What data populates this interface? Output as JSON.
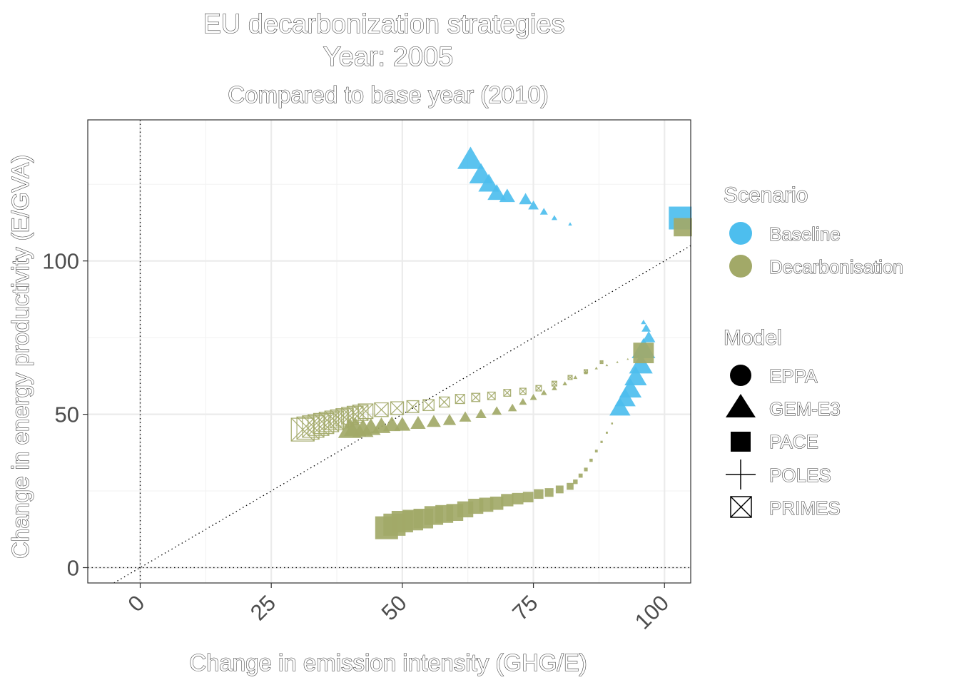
{
  "chart_data": {
    "type": "scatter",
    "title": "EU decarbonization strategies",
    "title_line2": "Year: 2005",
    "subtitle": "Compared to base year (2010)",
    "xlabel": "Change in emission intensity (GHG/E)",
    "ylabel": "Change in energy productivity (E/GVA)",
    "xlim": [
      -10,
      105
    ],
    "ylim": [
      -5,
      146
    ],
    "x_ticks": [
      0,
      25,
      50,
      75,
      100
    ],
    "x_tick_labels": [
      "0",
      "25",
      "50",
      "75",
      "100"
    ],
    "y_ticks": [
      0,
      50,
      100
    ],
    "y_tick_labels": [
      "0",
      "50",
      "100"
    ],
    "grid": true,
    "reference_lines": {
      "vertical_x": 0,
      "horizontal_y": 0,
      "diagonal_slope": 1
    },
    "legend_position": "right",
    "legends": [
      {
        "title": "Scenario",
        "entries": [
          {
            "label": "Baseline",
            "color": "#4dbeee"
          },
          {
            "label": "Decarbonisation",
            "color": "#a2a968"
          }
        ]
      },
      {
        "title": "Model",
        "entries": [
          {
            "label": "EPPA",
            "shape": "circle"
          },
          {
            "label": "GEM-E3",
            "shape": "triangle"
          },
          {
            "label": "PACE",
            "shape": "square"
          },
          {
            "label": "POLES",
            "shape": "plus"
          },
          {
            "label": "PRIMES",
            "shape": "square-cross"
          }
        ]
      }
    ],
    "series": [
      {
        "scenario": "Baseline",
        "model": "GEM-E3",
        "x": [
          63,
          65,
          66.5,
          68,
          70,
          73.5,
          75,
          77,
          79,
          82
        ],
        "y": [
          133,
          128,
          125,
          122,
          121,
          120,
          118,
          116,
          114,
          112
        ],
        "size": [
          1.0,
          0.9,
          0.8,
          0.7,
          0.6,
          0.5,
          0.4,
          0.3,
          0.22,
          0.15
        ]
      },
      {
        "scenario": "Baseline",
        "model": "GEM-E3",
        "x": [
          96,
          95.5,
          94.5,
          93.5,
          92.5,
          91.5
        ],
        "y": [
          71,
          66,
          62,
          58,
          55,
          52
        ],
        "size": [
          0.9,
          0.9,
          0.85,
          0.85,
          0.8,
          0.8
        ]
      },
      {
        "scenario": "Baseline",
        "model": "GEM-E3",
        "x": [
          96,
          96.5,
          97
        ],
        "y": [
          80,
          78,
          75
        ],
        "size": [
          0.2,
          0.35,
          0.5
        ]
      },
      {
        "scenario": "Baseline",
        "model": "PACE",
        "x": [
          103
        ],
        "y": [
          114
        ],
        "size": [
          1.0
        ]
      },
      {
        "scenario": "Decarbonisation",
        "model": "PACE",
        "x": [
          103.5
        ],
        "y": [
          111
        ],
        "size": [
          0.8
        ]
      },
      {
        "scenario": "Decarbonisation",
        "model": "PACE",
        "x": [
          96
        ],
        "y": [
          70
        ],
        "size": [
          0.9
        ]
      },
      {
        "scenario": "Decarbonisation",
        "model": "PACE",
        "x": [
          47,
          48.5,
          50,
          52,
          54,
          56,
          58,
          60,
          62,
          64,
          66,
          68,
          70,
          72,
          74,
          76,
          78,
          80,
          82
        ],
        "y": [
          13,
          14,
          15,
          15.5,
          16,
          17,
          17.5,
          18,
          19,
          20,
          20.5,
          21,
          22,
          22.5,
          23,
          24,
          24.5,
          25.5,
          26.5
        ],
        "size": [
          1.0,
          0.97,
          0.94,
          0.9,
          0.86,
          0.82,
          0.78,
          0.74,
          0.7,
          0.66,
          0.62,
          0.58,
          0.54,
          0.5,
          0.46,
          0.42,
          0.38,
          0.34,
          0.3
        ]
      },
      {
        "scenario": "Decarbonisation",
        "model": "PACE",
        "x": [
          83,
          84,
          85,
          86,
          87,
          88,
          89,
          90
        ],
        "y": [
          28,
          30,
          32,
          35,
          38,
          41,
          44,
          47
        ],
        "size": [
          0.2,
          0.18,
          0.16,
          0.14,
          0.12,
          0.1,
          0.09,
          0.08
        ]
      },
      {
        "scenario": "Decarbonisation",
        "model": "GEM-E3",
        "x": [
          40,
          41,
          42.5,
          44,
          46,
          48,
          50,
          53,
          56,
          59,
          62,
          65,
          68,
          71,
          73,
          75,
          77,
          79,
          81,
          83,
          85,
          87,
          89,
          91,
          93,
          95
        ],
        "y": [
          45,
          45.5,
          45,
          45.5,
          46,
          46.5,
          46.5,
          47,
          47.5,
          48,
          49,
          50,
          51,
          52,
          54,
          55.5,
          57,
          58.5,
          60,
          62,
          63.5,
          65,
          66,
          67,
          68,
          69
        ],
        "size": [
          0.9,
          0.85,
          0.8,
          0.75,
          0.7,
          0.66,
          0.62,
          0.58,
          0.54,
          0.5,
          0.46,
          0.42,
          0.38,
          0.34,
          0.3,
          0.27,
          0.24,
          0.21,
          0.18,
          0.16,
          0.14,
          0.12,
          0.1,
          0.09,
          0.08,
          0.07
        ]
      },
      {
        "scenario": "Decarbonisation",
        "model": "PRIMES",
        "x": [
          31,
          32,
          33,
          34,
          35,
          36,
          37,
          38,
          39,
          40,
          41,
          42,
          43,
          46,
          49,
          52,
          55,
          58,
          61,
          64,
          67,
          70,
          73,
          76,
          79,
          82,
          85,
          88
        ],
        "y": [
          45,
          45.5,
          46,
          46.5,
          47,
          47.5,
          48,
          48.5,
          49,
          49.5,
          50,
          50.5,
          51,
          51.5,
          52,
          52.5,
          53,
          54,
          55,
          55.5,
          56,
          57,
          57.5,
          58.5,
          60,
          62,
          64,
          67
        ],
        "size": [
          1.0,
          0.97,
          0.94,
          0.91,
          0.88,
          0.85,
          0.82,
          0.79,
          0.76,
          0.73,
          0.7,
          0.67,
          0.64,
          0.6,
          0.56,
          0.52,
          0.48,
          0.44,
          0.4,
          0.36,
          0.33,
          0.3,
          0.27,
          0.24,
          0.21,
          0.18,
          0.15,
          0.12
        ]
      }
    ]
  }
}
